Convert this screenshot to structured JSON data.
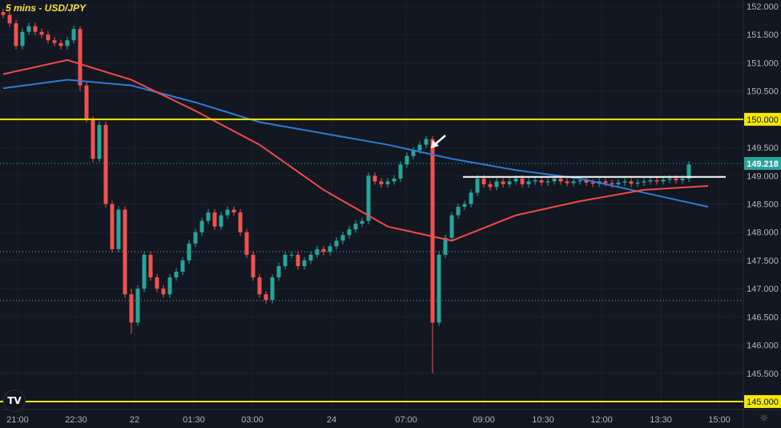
{
  "header": {
    "title": "5 mins - USD/JPY"
  },
  "icons": {
    "logo": "tradingview-logo-icon",
    "settings": "gear-icon"
  },
  "colors": {
    "background": "#131722",
    "up": "#26a69a",
    "down": "#ef5350",
    "ma_red": "#f04a4a",
    "ma_blue": "#2f7bd6",
    "level": "#f5e900",
    "grid": "#1e222d",
    "axis_text": "#b2b5be"
  },
  "chart_data": {
    "type": "candlestick",
    "title": "5 mins - USD/JPY",
    "ylim": [
      145.0,
      152.0
    ],
    "y_ticks": [
      "152.000",
      "151.500",
      "151.000",
      "150.500",
      "150.000",
      "149.500",
      "149.000",
      "148.500",
      "148.000",
      "147.500",
      "147.000",
      "146.500",
      "146.000",
      "145.500",
      "145.000"
    ],
    "x_ticks": [
      "21:00",
      "22:30",
      "22",
      "01:30",
      "03:00",
      "24",
      "07:00",
      "09:00",
      "10:30",
      "12:00",
      "13:30",
      "15:00"
    ],
    "candles_close": [
      151.85,
      151.7,
      151.3,
      151.55,
      151.65,
      151.55,
      151.5,
      151.4,
      151.35,
      151.3,
      151.4,
      151.6,
      [
        151.6,
        151.65,
        150.5,
        150.6
      ],
      150.0,
      149.3,
      149.9,
      148.5,
      147.7,
      148.4,
      146.9,
      [
        146.9,
        147.0,
        146.2,
        146.4
      ],
      147.0,
      147.6,
      147.2,
      147.0,
      146.9,
      147.2,
      147.3,
      147.5,
      147.8,
      148.0,
      148.2,
      148.35,
      148.1,
      148.3,
      148.4,
      148.35,
      148.0,
      147.6,
      147.2,
      146.9,
      146.8,
      147.2,
      147.4,
      147.6,
      147.6,
      147.4,
      147.5,
      147.6,
      147.7,
      147.65,
      147.75,
      147.85,
      147.95,
      148.05,
      148.15,
      148.2,
      149.0,
      148.9,
      148.85,
      148.9,
      148.95,
      149.2,
      149.35,
      149.45,
      149.55,
      149.65,
      [
        149.65,
        149.7,
        145.5,
        146.4
      ],
      147.6,
      147.9,
      148.3,
      148.45,
      148.5,
      148.7,
      148.95,
      148.85,
      148.8,
      148.9,
      148.85,
      148.9,
      148.95,
      148.85,
      148.9,
      148.92,
      148.88,
      148.9,
      148.95,
      148.9,
      148.87,
      148.9,
      148.92,
      148.88,
      148.86,
      148.9,
      148.87,
      148.85,
      148.88,
      148.9,
      148.86,
      148.88,
      148.9,
      148.92,
      148.9,
      148.93,
      148.95,
      148.92,
      148.95,
      149.2
    ],
    "series": [
      {
        "type": "line",
        "color": "#2f7bd6",
        "every_n_candles": 10,
        "values": [
          150.55,
          150.7,
          150.6,
          150.3,
          149.95,
          149.75,
          149.55,
          149.3,
          149.1,
          148.95,
          148.7,
          148.45
        ]
      },
      {
        "type": "line",
        "color": "#f04a4a",
        "every_n_candles": 10,
        "values": [
          150.8,
          151.05,
          150.7,
          150.15,
          149.55,
          148.75,
          148.1,
          147.85,
          148.3,
          148.55,
          148.75,
          148.82
        ]
      }
    ],
    "levels": [
      {
        "price": 150.0,
        "label": "150.000",
        "color": "#f5e900"
      },
      {
        "price": 145.0,
        "label": "145.000",
        "color": "#f5e900"
      }
    ],
    "support_line": {
      "price": 148.98,
      "color": "#ffffff"
    },
    "last_price": {
      "price": 149.218,
      "label": "149.218",
      "color": "#26a69a"
    },
    "dotted_levels": [
      147.655,
      146.79
    ],
    "annotation": "arrow pointing at spike high"
  }
}
